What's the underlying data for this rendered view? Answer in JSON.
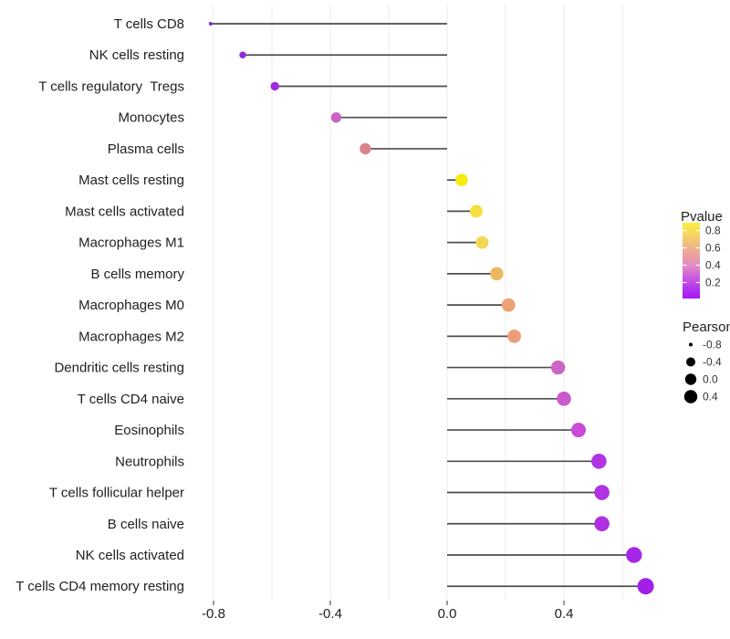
{
  "figure": {
    "background": "#ffffff"
  },
  "chart_data": {
    "type": "lollipop",
    "title": "",
    "xlabel": "",
    "ylabel": "",
    "baseline": 0.0,
    "x_axis": {
      "tick_values": [
        -0.8,
        -0.4,
        0.0,
        0.4
      ],
      "tick_labels": [
        "-0.8",
        "-0.4",
        "0.0",
        "0.4"
      ],
      "gridline_values": [
        -0.8,
        -0.6,
        -0.4,
        -0.2,
        0.0,
        0.2,
        0.4,
        0.6
      ],
      "range": [
        -0.885,
        0.755
      ]
    },
    "points": [
      {
        "label": "T cells CD8",
        "pearson": -0.81,
        "radius": 2.0,
        "color": "#7E2BCE"
      },
      {
        "label": "NK cells resting",
        "pearson": -0.7,
        "radius": 3.7,
        "color": "#8E2ADF"
      },
      {
        "label": "T cells regulatory  Tregs",
        "pearson": -0.59,
        "radius": 4.7,
        "color": "#A12BE0"
      },
      {
        "label": "Monocytes",
        "pearson": -0.38,
        "radius": 5.7,
        "color": "#C964C6"
      },
      {
        "label": "Plasma cells",
        "pearson": -0.28,
        "radius": 6.2,
        "color": "#D9838E"
      },
      {
        "label": "Mast cells resting",
        "pearson": 0.05,
        "radius": 6.8,
        "color": "#F8EB11"
      },
      {
        "label": "Mast cells activated",
        "pearson": 0.1,
        "radius": 7.0,
        "color": "#F6DF42"
      },
      {
        "label": "Macrophages M1",
        "pearson": 0.12,
        "radius": 7.0,
        "color": "#F3D857"
      },
      {
        "label": "B cells memory",
        "pearson": 0.17,
        "radius": 7.2,
        "color": "#EBB75F"
      },
      {
        "label": "Macrophages M0",
        "pearson": 0.21,
        "radius": 7.4,
        "color": "#EDA273"
      },
      {
        "label": "Macrophages M2",
        "pearson": 0.23,
        "radius": 7.4,
        "color": "#EC9E7B"
      },
      {
        "label": "Dendritic cells resting",
        "pearson": 0.38,
        "radius": 7.7,
        "color": "#C966C6"
      },
      {
        "label": "T cells CD4 naive",
        "pearson": 0.4,
        "radius": 7.8,
        "color": "#CB59CE"
      },
      {
        "label": "Eosinophils",
        "pearson": 0.45,
        "radius": 8.0,
        "color": "#C84BD6"
      },
      {
        "label": "Neutrophils",
        "pearson": 0.52,
        "radius": 8.3,
        "color": "#B134E2"
      },
      {
        "label": "T cells follicular helper",
        "pearson": 0.53,
        "radius": 8.3,
        "color": "#B032E2"
      },
      {
        "label": "B cells naive",
        "pearson": 0.53,
        "radius": 8.3,
        "color": "#AF30E2"
      },
      {
        "label": "NK cells activated",
        "pearson": 0.64,
        "radius": 8.7,
        "color": "#A626E8"
      },
      {
        "label": "T cells CD4 memory resting",
        "pearson": 0.68,
        "radius": 9.0,
        "color": "#A21FE8"
      }
    ],
    "legend": {
      "pvalue": {
        "title": "Pvalue",
        "tick_labels": [
          "0.8",
          "0.6",
          "0.4",
          "0.2"
        ],
        "gradient_top_to_bottom": [
          "#FBEE3B",
          "#F6D75F",
          "#F1BC7F",
          "#EAA09F",
          "#E08BC4",
          "#CB5EDC",
          "#B437EC",
          "#A316F4"
        ]
      },
      "pearson": {
        "title": "Pearson",
        "dot_color": "#000000",
        "entries": [
          {
            "label": "-0.8",
            "radius": 2.0
          },
          {
            "label": "-0.4",
            "radius": 5.0
          },
          {
            "label": "0.0",
            "radius": 6.2
          },
          {
            "label": "0.4",
            "radius": 7.2
          }
        ]
      },
      "position": "right"
    },
    "style_colors": {
      "stem": "#4D4D4D",
      "gridline": "#EBEBEB",
      "axis_tick": "#333333",
      "axis_text": "#1F1F1F",
      "legend_text": "#333333",
      "legend_title": "#1F1F1F"
    }
  }
}
